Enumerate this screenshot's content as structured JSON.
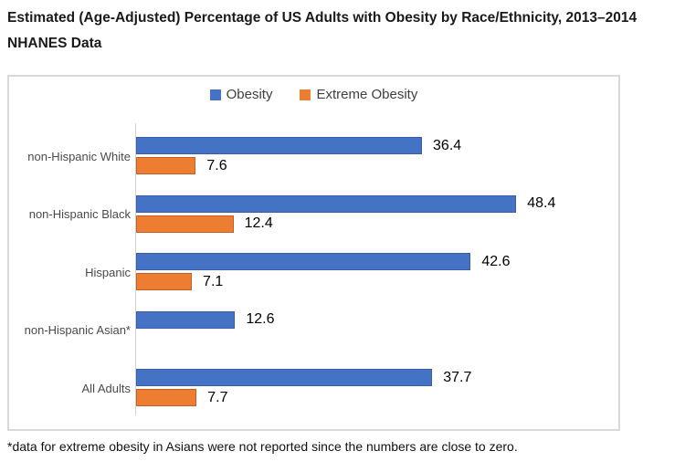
{
  "page": {
    "title_line1": "Estimated (Age-Adjusted) Percentage of US Adults with Obesity by Race/Ethnicity, 2013–2014",
    "title_line2": "NHANES Data",
    "footnote": "*data for extreme obesity in Asians were not reported since the numbers are close to zero."
  },
  "colors": {
    "obesity": "#4472C4",
    "obesity_border": "#3a5ca8",
    "extreme_obesity": "#ED7D31",
    "extreme_obesity_border": "#c55f27",
    "chart_border": "#d9d9d9",
    "axis_line": "#d2d2d2",
    "category_text": "#4a4a4a",
    "value_text": "#000000"
  },
  "chart_data": {
    "type": "bar",
    "orientation": "horizontal",
    "title": "Estimated (Age-Adjusted) Percentage of US Adults with Obesity by Race/Ethnicity, 2013–2014 NHANES Data",
    "xlabel": "",
    "ylabel": "",
    "xlim": [
      0,
      60
    ],
    "grid": false,
    "data_labels": true,
    "legend_position": "top-center",
    "categories": [
      "non-Hispanic White",
      "non-Hispanic Black",
      "Hispanic",
      "non-Hispanic Asian*",
      "All Adults"
    ],
    "series": [
      {
        "name": "Obesity",
        "values": [
          36.4,
          48.4,
          42.6,
          12.6,
          37.7
        ]
      },
      {
        "name": "Extreme Obesity",
        "values": [
          7.6,
          12.4,
          7.1,
          null,
          7.7
        ]
      }
    ]
  }
}
